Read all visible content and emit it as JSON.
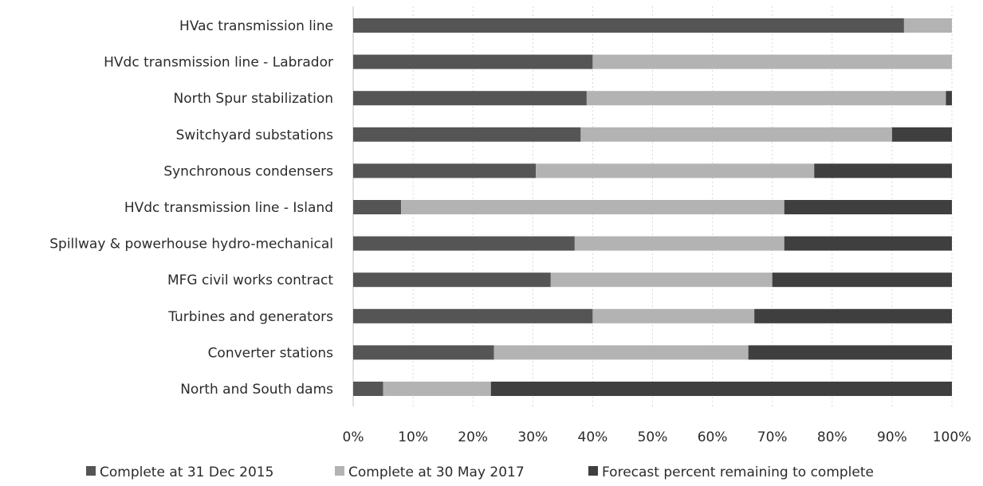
{
  "chart_data": {
    "type": "bar",
    "orientation": "horizontal",
    "stacked": true,
    "categories": [
      "HVac transmission line",
      "HVdc transmission line - Labrador",
      "North Spur stabilization",
      "Switchyard substations",
      "Synchronous condensers",
      "HVdc transmission line - Island",
      "Spillway & powerhouse hydro-mechanical",
      "MFG civil works contract",
      "Turbines and generators",
      "Converter stations",
      "North and South dams"
    ],
    "series": [
      {
        "name": "Complete at 31 Dec 2015",
        "color": "#555555",
        "values": [
          92,
          40,
          39,
          38,
          30.5,
          8,
          37,
          33,
          40,
          23.5,
          5
        ]
      },
      {
        "name": "Complete at 30 May 2017",
        "color": "#b3b3b3",
        "values": [
          8,
          60,
          60,
          52,
          46.5,
          64,
          35,
          37,
          27,
          42.5,
          18
        ]
      },
      {
        "name": "Forecast percent remaining to complete",
        "color": "#3f3f3f",
        "values": [
          0,
          0,
          1,
          10,
          23,
          28,
          28,
          30,
          33,
          34,
          77
        ]
      }
    ],
    "x_ticks": [
      "0%",
      "10%",
      "20%",
      "30%",
      "40%",
      "50%",
      "60%",
      "70%",
      "80%",
      "90%",
      "100%"
    ],
    "xlim": [
      0,
      100
    ],
    "grid": true,
    "legend_position": "bottom",
    "title": "",
    "xlabel": "",
    "ylabel": ""
  }
}
